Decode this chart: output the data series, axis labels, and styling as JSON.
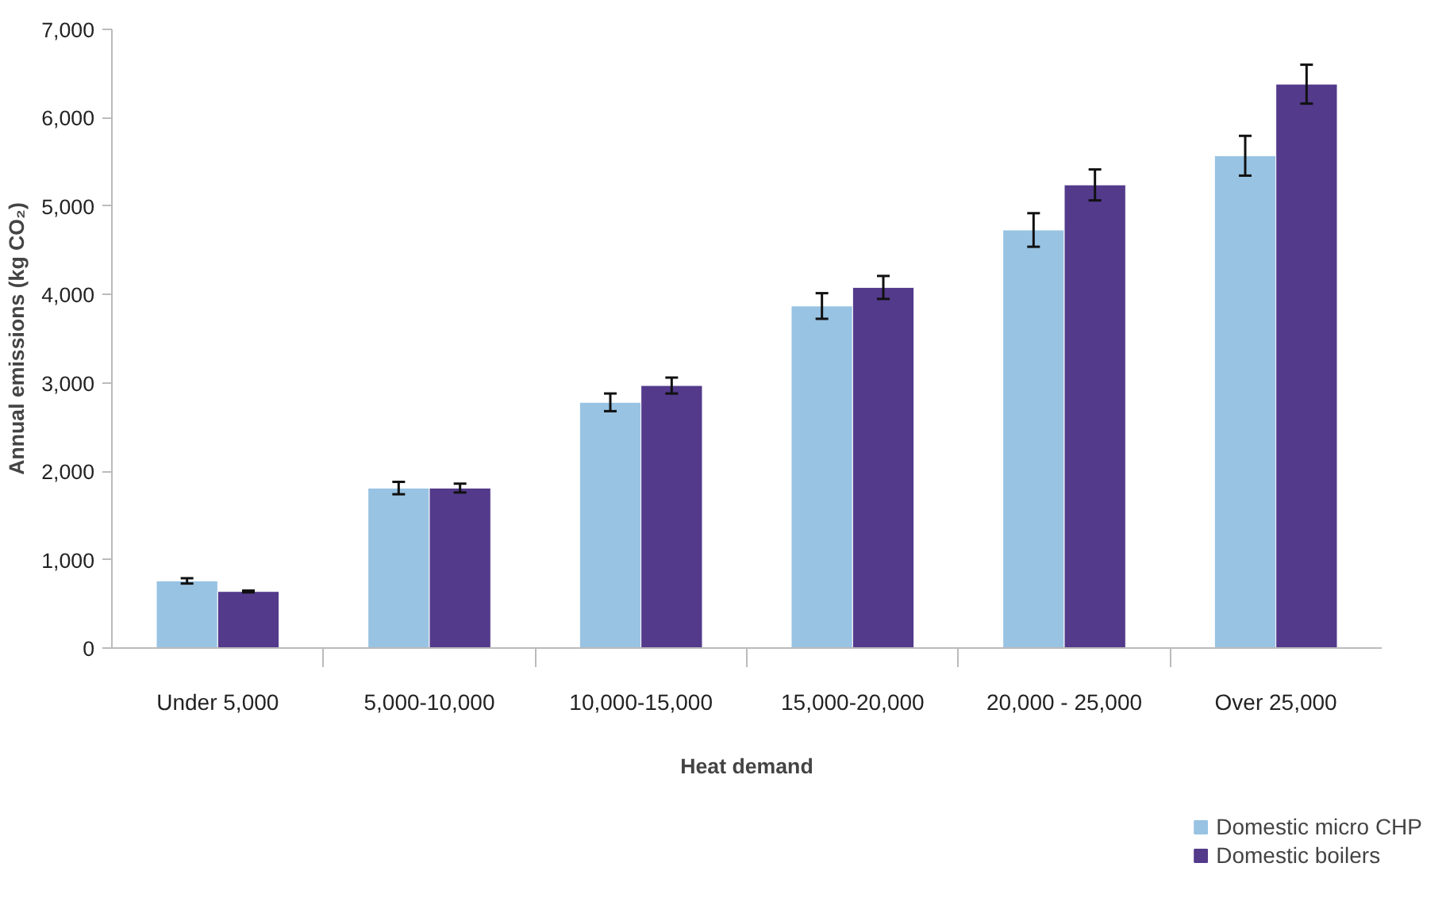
{
  "chart_data": {
    "type": "bar",
    "xlabel": "Heat demand",
    "ylabel": "Annual emissions (kg CO₂)",
    "categories": [
      "Under 5,000",
      "5,000-10,000",
      "10,000-15,000",
      "15,000-20,000",
      "20,000 - 25,000",
      "Over 25,000"
    ],
    "series": [
      {
        "name": "Domestic micro CHP",
        "color": "#98c3e3",
        "values": [
          760,
          1810,
          2780,
          3870,
          4730,
          5570
        ],
        "errors": [
          30,
          70,
          100,
          145,
          190,
          225
        ]
      },
      {
        "name": "Domestic boilers",
        "color": "#533a8b",
        "values": [
          640,
          1810,
          2970,
          4080,
          5240,
          6380
        ],
        "errors": [
          10,
          50,
          90,
          130,
          175,
          220
        ]
      }
    ],
    "ylim": [
      0,
      7000
    ],
    "yticks": [
      0,
      {
        "value": 1000,
        "label": "1,000"
      },
      {
        "value": 2000,
        "label": "2,000"
      },
      {
        "value": 3000,
        "label": "3,000"
      },
      {
        "value": 4000,
        "label": "4,000"
      },
      {
        "value": 5000,
        "label": "5,000"
      },
      {
        "value": 6000,
        "label": "6,000"
      },
      {
        "value": 7000,
        "label": "7,000"
      }
    ],
    "grid": false,
    "legend": "bottom right"
  }
}
